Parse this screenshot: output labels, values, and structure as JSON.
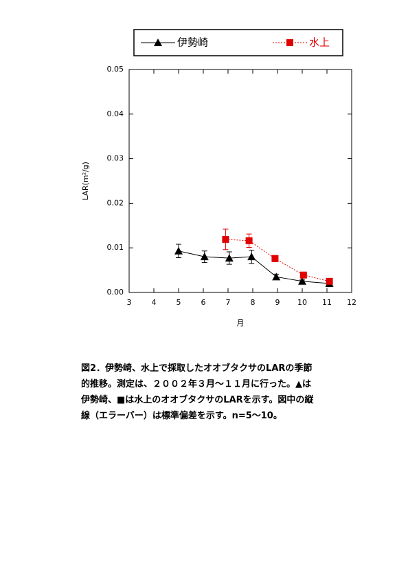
{
  "chart_data": {
    "type": "line",
    "xlabel": "月",
    "ylabel": "LAR(m²/g)",
    "xlim": [
      3,
      12
    ],
    "xticks": [
      3,
      4,
      5,
      6,
      7,
      8,
      9,
      10,
      11,
      12
    ],
    "ylim": [
      0,
      0.05
    ],
    "yticks": [
      {
        "value": 0,
        "label": "0.00"
      },
      0.01,
      0.02,
      0.03,
      0.04,
      0.05
    ],
    "series": [
      {
        "name": "伊勢崎",
        "color": "#000000",
        "marker": "triangle",
        "dash": false,
        "x": [
          5.0,
          6.05,
          7.05,
          7.95,
          8.95,
          10.0,
          11.1
        ],
        "values": [
          0.0093,
          0.008,
          0.0077,
          0.008,
          0.0035,
          0.0025,
          0.002
        ],
        "errors": [
          0.0015,
          0.0013,
          0.0014,
          0.0015,
          0.0006,
          0.0003,
          0.0002
        ]
      },
      {
        "name": "水上",
        "color": "#e00000",
        "marker": "square",
        "dash": true,
        "x": [
          6.9,
          7.85,
          8.9,
          10.05,
          11.1
        ],
        "values": [
          0.0119,
          0.0116,
          0.0076,
          0.0039,
          0.0025
        ],
        "errors": [
          0.0023,
          0.0015,
          0.0007,
          0.0003,
          0.0002
        ]
      }
    ]
  },
  "caption": [
    "図2．伊勢崎、水上で採取したオオブタクサのLARの季節",
    "的推移。測定は、２００２年３月～１１月に行った。▲は",
    "伊勢崎、■は水上のオオブタクサのLARを示す。図中の縦",
    "線（エラーバー）は標準偏差を示す。n=5～10。"
  ]
}
